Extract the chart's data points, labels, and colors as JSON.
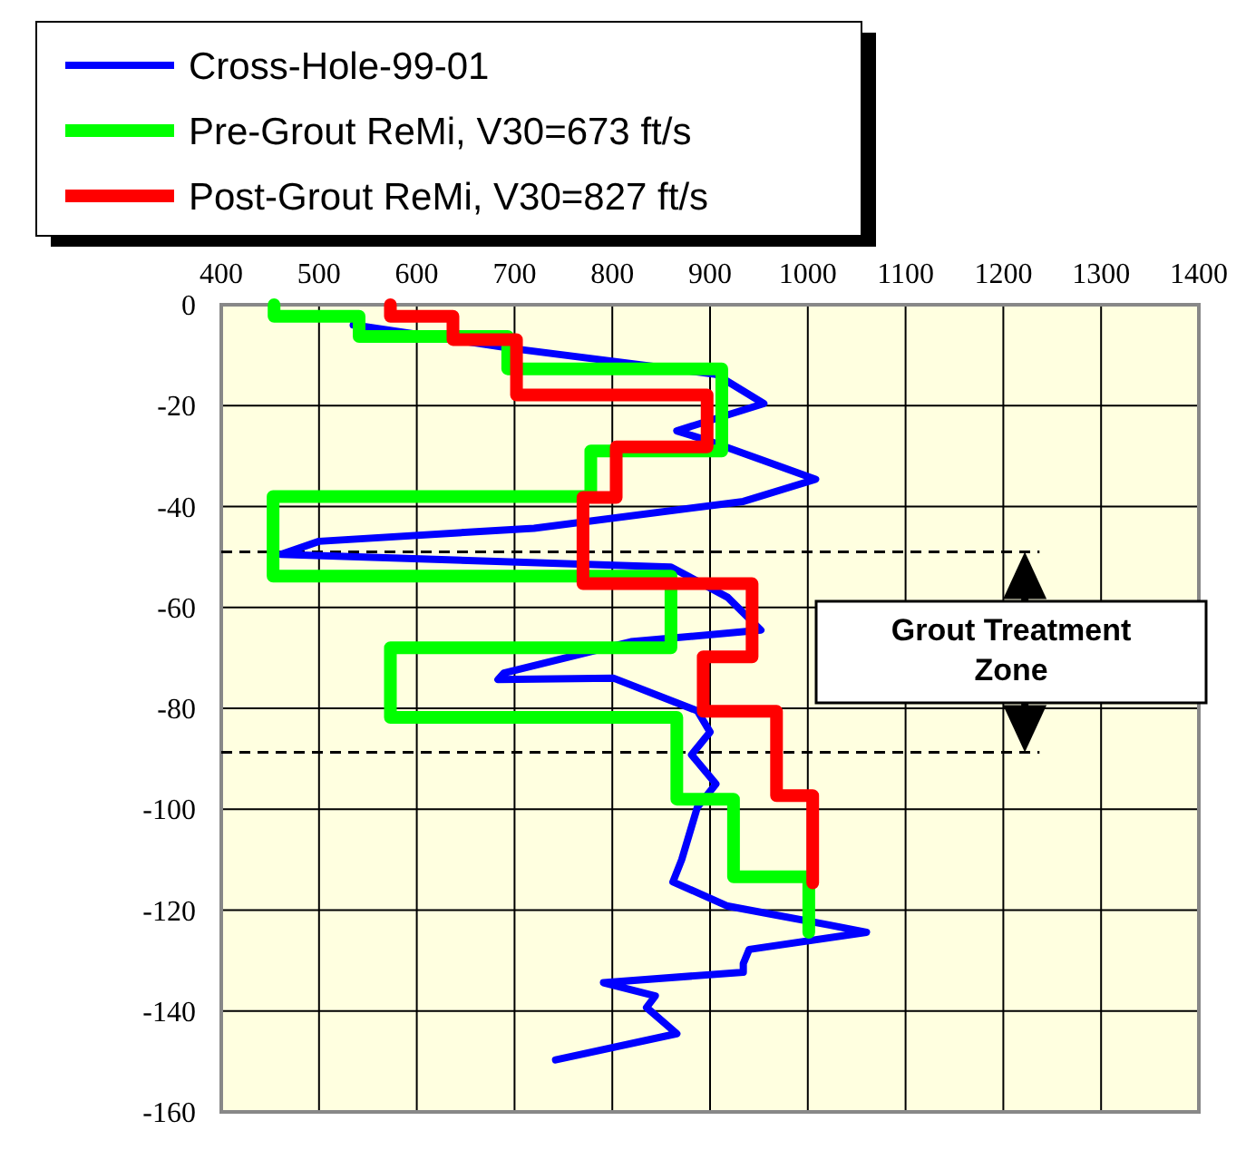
{
  "chart_data": {
    "type": "line",
    "xlim": [
      400,
      1400
    ],
    "xticks": [
      400,
      500,
      600,
      700,
      800,
      900,
      1000,
      1100,
      1200,
      1300,
      1400
    ],
    "ylim": [
      -160,
      0
    ],
    "yticks": [
      0,
      -20,
      -40,
      -60,
      -80,
      -100,
      -120,
      -140,
      -160
    ],
    "grid": true,
    "legend": "top left",
    "marker": "none",
    "line_style": "solid",
    "series": [
      {
        "name": "Cross-Hole-99-01",
        "color": "#0000ff",
        "x": [
          535,
          695,
          906,
          955,
          866,
          899,
          1008,
          934,
          720,
          500,
          461,
          860,
          918,
          952,
          819,
          689,
          683,
          801,
          887,
          900,
          881,
          906,
          887,
          871,
          862,
          918,
          1023,
          1060,
          940,
          934,
          934,
          791,
          844,
          835,
          866,
          742
        ],
        "values": [
          -4,
          -8.6,
          -13.8,
          -19.6,
          -25,
          -27,
          -34.6,
          -39,
          -44.3,
          -46.9,
          -49.5,
          -52,
          -58,
          -64.5,
          -66.8,
          -73,
          -74.3,
          -74,
          -80.5,
          -84.7,
          -89.2,
          -95,
          -99.6,
          -110,
          -114.4,
          -119.2,
          -123,
          -124.4,
          -127.8,
          -130.6,
          -132.3,
          -134.4,
          -137,
          -139.3,
          -144.5,
          -149.7
        ]
      },
      {
        "name": "Pre-Grout ReMi, V30=673 ft/s",
        "color": "#00ff00",
        "x": [
          454,
          454,
          541,
          541,
          693,
          693,
          912,
          912,
          778,
          778,
          453,
          453,
          860,
          860,
          573,
          573,
          866,
          866,
          924,
          924,
          1001,
          1001
        ],
        "values": [
          0,
          -2.3,
          -2.3,
          -6.3,
          -6.3,
          -12.7,
          -12.7,
          -29,
          -29,
          -38,
          -38,
          -53.8,
          -53.8,
          -68,
          -68,
          -81.8,
          -81.8,
          -98,
          -98,
          -113.4,
          -113.4,
          -124.4
        ]
      },
      {
        "name": "Post-Grout ReMi, V30=827 ft/s",
        "color": "#ff0000",
        "x": [
          573,
          573,
          637,
          637,
          702,
          702,
          897,
          897,
          804,
          804,
          770,
          770,
          943,
          943,
          893,
          893,
          968,
          968,
          1005,
          1005
        ],
        "values": [
          0,
          -2.3,
          -2.3,
          -6.9,
          -6.9,
          -17.9,
          -17.9,
          -28.2,
          -28.2,
          -38.2,
          -38.2,
          -55.3,
          -55.3,
          -69.8,
          -69.8,
          -80.6,
          -80.6,
          -97.3,
          -97.3,
          -114.6
        ]
      }
    ],
    "ref_lines": [
      {
        "axis": "y",
        "value": -49,
        "color": "#000000",
        "line_style": "dashed"
      },
      {
        "axis": "y",
        "value": -88.7,
        "color": "#000000",
        "line_style": "dashed"
      }
    ],
    "annotations": [
      "Grout Treatment Zone"
    ]
  }
}
